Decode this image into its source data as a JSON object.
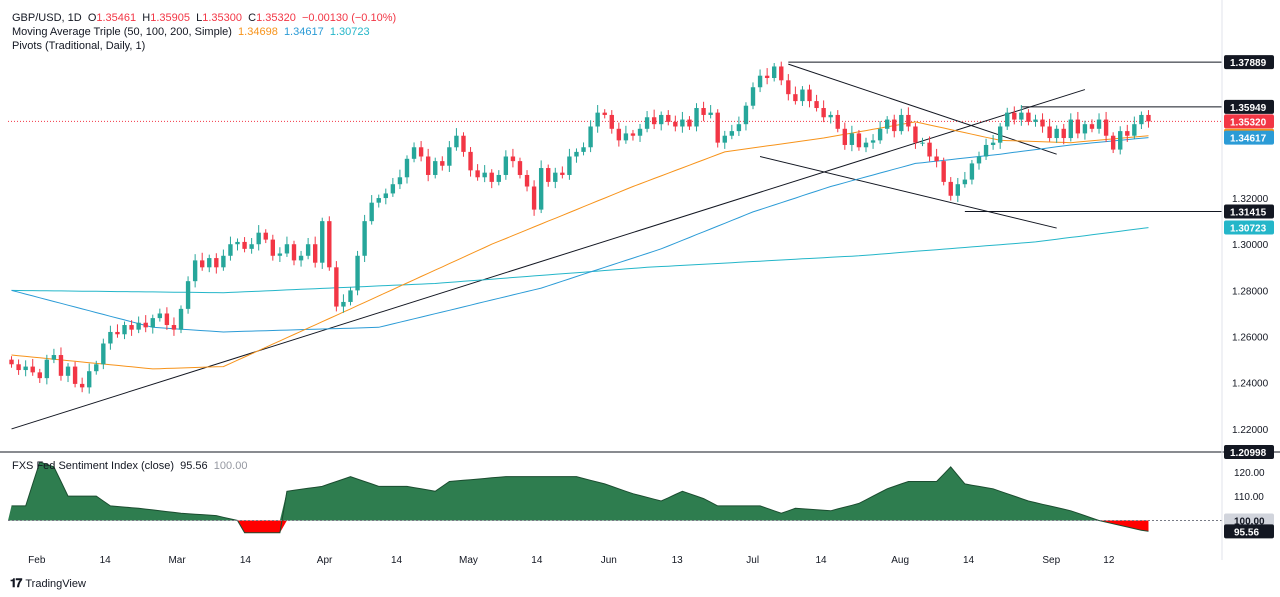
{
  "legend": {
    "symbol": "GBP/USD, 1D",
    "o_label": "O",
    "o": "1.35461",
    "h_label": "H",
    "h": "1.35905",
    "l_label": "L",
    "l": "1.35300",
    "c_label": "C",
    "c": "1.35320",
    "chg": "−0.00130 (−0.10%)",
    "ma_title": "Moving Average Triple (50, 100, 200, Simple)",
    "ma50": "1.34698",
    "ma100": "1.34617",
    "ma200": "1.30723",
    "pivots_title": "Pivots (Traditional, Daily, 1)"
  },
  "sub_legend": {
    "title": "FXS Fed Sentiment Index (close)",
    "value": "95.56",
    "ref": "100.00"
  },
  "branding": {
    "name": "TradingView"
  },
  "colors": {
    "up": "#26a69a",
    "down": "#f23645",
    "ma50": "#f7931a",
    "ma100": "#2b9bd6",
    "ma200": "#24b6c9",
    "sentiment_up": "#2e7d4f",
    "sentiment_down": "#ff0000"
  },
  "chart_data": [
    {
      "type": "candlestick",
      "title": "GBP/USD, 1D",
      "ylim": [
        1.21,
        1.385
      ],
      "y_ticks": [
        "1.22000",
        "1.24000",
        "1.26000",
        "1.28000",
        "1.30000",
        "1.32000"
      ],
      "price_tags": [
        {
          "value": "1.37889",
          "style": "dark"
        },
        {
          "value": "1.35949",
          "style": "dark"
        },
        {
          "value": "1.35320",
          "style": "down"
        },
        {
          "value": "1.34698",
          "style": "ma50"
        },
        {
          "value": "1.34617",
          "style": "ma100"
        },
        {
          "value": "1.31415",
          "style": "dark"
        },
        {
          "value": "1.30723",
          "style": "ma200"
        },
        {
          "value": "1.20998",
          "style": "dark"
        }
      ],
      "x_ticks": [
        "Feb",
        "14",
        "Mar",
        "14",
        "Apr",
        "14",
        "May",
        "14",
        "Jun",
        "13",
        "Jul",
        "14",
        "Aug",
        "14",
        "Sep",
        "12"
      ],
      "closes": [
        1.248,
        1.2455,
        1.247,
        1.2445,
        1.242,
        1.25,
        1.252,
        1.243,
        1.247,
        1.2395,
        1.238,
        1.245,
        1.248,
        1.257,
        1.262,
        1.261,
        1.265,
        1.263,
        1.266,
        1.264,
        1.268,
        1.27,
        1.265,
        1.263,
        1.272,
        1.284,
        1.293,
        1.29,
        1.294,
        1.29,
        1.295,
        1.3,
        1.301,
        1.298,
        1.3,
        1.305,
        1.302,
        1.295,
        1.296,
        1.3,
        1.293,
        1.295,
        1.3,
        1.292,
        1.31,
        1.29,
        1.273,
        1.275,
        1.28,
        1.295,
        1.31,
        1.318,
        1.32,
        1.322,
        1.326,
        1.329,
        1.337,
        1.342,
        1.338,
        1.33,
        1.336,
        1.334,
        1.342,
        1.347,
        1.34,
        1.332,
        1.329,
        1.331,
        1.327,
        1.33,
        1.338,
        1.336,
        1.33,
        1.325,
        1.315,
        1.333,
        1.327,
        1.331,
        1.33,
        1.338,
        1.34,
        1.342,
        1.351,
        1.357,
        1.356,
        1.35,
        1.345,
        1.348,
        1.347,
        1.35,
        1.355,
        1.352,
        1.356,
        1.353,
        1.351,
        1.354,
        1.351,
        1.359,
        1.356,
        1.357,
        1.344,
        1.347,
        1.349,
        1.352,
        1.36,
        1.368,
        1.373,
        1.372,
        1.377,
        1.371,
        1.365,
        1.362,
        1.367,
        1.362,
        1.359,
        1.355,
        1.356,
        1.35,
        1.343,
        1.348,
        1.342,
        1.344,
        1.345,
        1.35,
        1.354,
        1.349,
        1.356,
        1.351,
        1.344,
        1.344,
        1.338,
        1.336,
        1.327,
        1.321,
        1.326,
        1.328,
        1.335,
        1.338,
        1.343,
        1.344,
        1.351,
        1.357,
        1.354,
        1.357,
        1.353,
        1.354,
        1.351,
        1.346,
        1.35,
        1.346,
        1.354,
        1.348,
        1.352,
        1.35,
        1.354,
        1.347,
        1.341,
        1.349,
        1.347,
        1.352,
        1.356,
        1.3532
      ],
      "ma50_anchors": [
        [
          0,
          1.252
        ],
        [
          20,
          1.246
        ],
        [
          30,
          1.247
        ],
        [
          48,
          1.272
        ],
        [
          68,
          1.3
        ],
        [
          88,
          1.325
        ],
        [
          101,
          1.34
        ],
        [
          115,
          1.346
        ],
        [
          128,
          1.353
        ],
        [
          140,
          1.345
        ],
        [
          150,
          1.344
        ],
        [
          161,
          1.347
        ]
      ],
      "ma100_anchors": [
        [
          0,
          1.28
        ],
        [
          20,
          1.264
        ],
        [
          30,
          1.262
        ],
        [
          52,
          1.264
        ],
        [
          75,
          1.281
        ],
        [
          92,
          1.298
        ],
        [
          105,
          1.314
        ],
        [
          116,
          1.325
        ],
        [
          128,
          1.335
        ],
        [
          140,
          1.339
        ],
        [
          150,
          1.343
        ],
        [
          161,
          1.3462
        ]
      ],
      "ma200_anchors": [
        [
          0,
          1.28
        ],
        [
          30,
          1.279
        ],
        [
          60,
          1.283
        ],
        [
          90,
          1.29
        ],
        [
          120,
          1.295
        ],
        [
          145,
          1.301
        ],
        [
          161,
          1.3072
        ]
      ],
      "trendlines": [
        {
          "from": [
            0,
            1.22
          ],
          "to": [
            152,
            1.367
          ]
        },
        {
          "from": [
            110,
            1.378
          ],
          "to": [
            148,
            1.339
          ]
        },
        {
          "from": [
            106,
            1.338
          ],
          "to": [
            148,
            1.307
          ]
        }
      ],
      "pivot_lines": [
        {
          "value": 1.37889,
          "from": 110
        },
        {
          "value": 1.35949,
          "from": 143
        },
        {
          "value": 1.31415,
          "from": 135
        }
      ]
    },
    {
      "type": "area",
      "title": "FXS Fed Sentiment Index (close)",
      "baseline": 100,
      "ylim": [
        92,
        124
      ],
      "y_ticks": [
        "110.00",
        "120.00"
      ],
      "price_tags": [
        {
          "value": "100.00",
          "style": "grey"
        },
        {
          "value": "95.56",
          "style": "dark"
        }
      ],
      "anchors": [
        [
          0,
          106
        ],
        [
          2,
          106
        ],
        [
          4,
          124
        ],
        [
          6,
          122
        ],
        [
          8,
          110
        ],
        [
          12,
          110
        ],
        [
          14,
          106
        ],
        [
          18,
          105
        ],
        [
          24,
          103
        ],
        [
          29,
          102
        ],
        [
          32,
          100
        ],
        [
          33,
          95
        ],
        [
          38,
          95
        ],
        [
          39,
          112
        ],
        [
          44,
          114
        ],
        [
          48,
          118
        ],
        [
          52,
          114
        ],
        [
          56,
          114
        ],
        [
          60,
          112
        ],
        [
          62,
          116
        ],
        [
          70,
          118
        ],
        [
          80,
          118
        ],
        [
          84,
          115
        ],
        [
          88,
          111
        ],
        [
          92,
          108
        ],
        [
          95,
          112
        ],
        [
          98,
          109
        ],
        [
          100,
          106
        ],
        [
          106,
          106
        ],
        [
          109,
          103
        ],
        [
          111,
          105
        ],
        [
          116,
          104
        ],
        [
          120,
          107
        ],
        [
          124,
          113
        ],
        [
          127,
          116
        ],
        [
          131,
          116
        ],
        [
          133,
          122
        ],
        [
          135,
          115
        ],
        [
          139,
          113
        ],
        [
          144,
          108
        ],
        [
          150,
          104
        ],
        [
          154,
          100
        ],
        [
          157,
          98
        ],
        [
          160,
          96
        ],
        [
          161,
          95.56
        ]
      ]
    }
  ]
}
